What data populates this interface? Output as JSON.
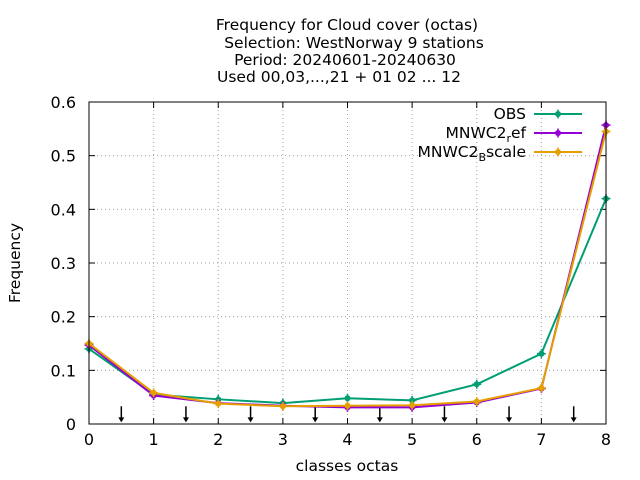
{
  "chart_data": {
    "type": "line",
    "title_lines": [
      "Frequency  for Cloud cover (octas)",
      "Selection: WestNorway      9 stations",
      "Period: 20240601-20240630",
      "Used 00,03,...,21 + 01 02 ... 12"
    ],
    "xlabel": "classes octas",
    "ylabel": "Frequency",
    "xlim": [
      0,
      8
    ],
    "ylim": [
      0,
      0.6
    ],
    "xticks": [
      0,
      1,
      2,
      3,
      4,
      5,
      6,
      7,
      8
    ],
    "yticks": [
      0,
      0.1,
      0.2,
      0.3,
      0.4,
      0.5,
      0.6
    ],
    "ytick_labels": [
      "0",
      "0.1",
      "0.2",
      "0.3",
      "0.4",
      "0.5",
      "0.6"
    ],
    "grid": true,
    "legend_position": "top-right",
    "x": [
      0,
      1,
      2,
      3,
      4,
      5,
      6,
      7,
      8
    ],
    "series": [
      {
        "name": "OBS",
        "color": "#009e73",
        "values": [
          0.14,
          0.055,
          0.046,
          0.039,
          0.048,
          0.044,
          0.074,
          0.131,
          0.42
        ]
      },
      {
        "name": "MNWC2_ref",
        "legend_main": "MNWC2",
        "legend_sub": "r",
        "legend_rest": "ef",
        "color": "#9400d3",
        "values": [
          0.147,
          0.053,
          0.039,
          0.034,
          0.031,
          0.031,
          0.04,
          0.066,
          0.557
        ]
      },
      {
        "name": "MNWC2_Bscale",
        "legend_main": "MNWC2",
        "legend_sub": "B",
        "legend_rest": "scale",
        "color": "#e69f00",
        "values": [
          0.15,
          0.058,
          0.038,
          0.033,
          0.034,
          0.035,
          0.042,
          0.067,
          0.545
        ]
      }
    ],
    "arrows_x": [
      0.5,
      1.5,
      2.5,
      3.5,
      4.5,
      5.5,
      6.5,
      7.5
    ],
    "arrow_range": [
      0.033,
      0.003
    ]
  }
}
